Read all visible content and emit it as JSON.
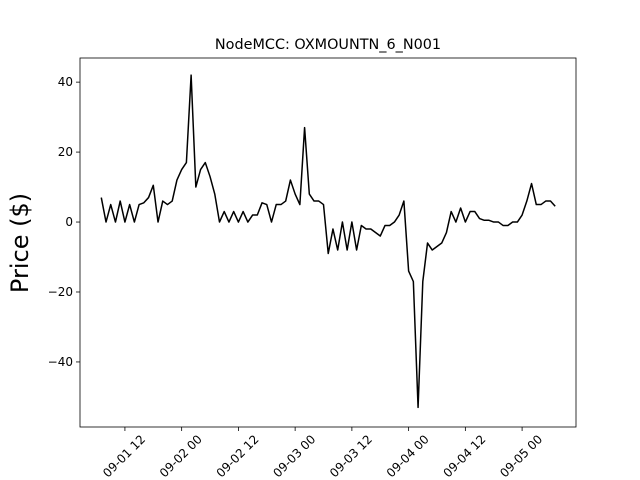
{
  "chart_data": {
    "type": "line",
    "title": "NodeMCC: OXMOUNTN_6_N001",
    "y_label": "Price ($)",
    "x": [
      "09-01 07:00",
      "09-01 08:00",
      "09-01 09:00",
      "09-01 10:00",
      "09-01 11:00",
      "09-01 12:00",
      "09-01 13:00",
      "09-01 14:00",
      "09-01 15:00",
      "09-01 16:00",
      "09-01 17:00",
      "09-01 18:00",
      "09-01 19:00",
      "09-01 20:00",
      "09-01 21:00",
      "09-01 22:00",
      "09-01 23:00",
      "09-02 00:00",
      "09-02 01:00",
      "09-02 02:00",
      "09-02 03:00",
      "09-02 04:00",
      "09-02 05:00",
      "09-02 06:00",
      "09-02 07:00",
      "09-02 08:00",
      "09-02 09:00",
      "09-02 10:00",
      "09-02 11:00",
      "09-02 12:00",
      "09-02 13:00",
      "09-02 14:00",
      "09-02 15:00",
      "09-02 16:00",
      "09-02 17:00",
      "09-02 18:00",
      "09-02 19:00",
      "09-02 20:00",
      "09-02 21:00",
      "09-02 22:00",
      "09-02 23:00",
      "09-03 00:00",
      "09-03 01:00",
      "09-03 02:00",
      "09-03 03:00",
      "09-03 04:00",
      "09-03 05:00",
      "09-03 06:00",
      "09-03 07:00",
      "09-03 08:00",
      "09-03 09:00",
      "09-03 10:00",
      "09-03 11:00",
      "09-03 12:00",
      "09-03 13:00",
      "09-03 14:00",
      "09-03 15:00",
      "09-03 16:00",
      "09-03 17:00",
      "09-03 18:00",
      "09-03 19:00",
      "09-03 20:00",
      "09-03 21:00",
      "09-03 22:00",
      "09-03 23:00",
      "09-04 00:00",
      "09-04 01:00",
      "09-04 02:00",
      "09-04 03:00",
      "09-04 04:00",
      "09-04 05:00",
      "09-04 06:00",
      "09-04 07:00",
      "09-04 08:00",
      "09-04 09:00",
      "09-04 10:00",
      "09-04 11:00",
      "09-04 12:00",
      "09-04 13:00",
      "09-04 14:00",
      "09-04 15:00",
      "09-04 16:00",
      "09-04 17:00",
      "09-04 18:00",
      "09-04 19:00",
      "09-04 20:00",
      "09-04 21:00",
      "09-04 22:00",
      "09-04 23:00",
      "09-05 00:00",
      "09-05 01:00",
      "09-05 02:00",
      "09-05 03:00",
      "09-05 04:00",
      "09-05 05:00",
      "09-05 06:00",
      "09-05 07:00"
    ],
    "series": [
      {
        "color": "#000000",
        "values": [
          7,
          0,
          5,
          0,
          6,
          0,
          5,
          0,
          5,
          5.5,
          7,
          10.5,
          0,
          6,
          5,
          6,
          12,
          15,
          17,
          42,
          10,
          15,
          17,
          13,
          8,
          0,
          3,
          0,
          3,
          0,
          3,
          0,
          2,
          2,
          5.5,
          5,
          0,
          5,
          5,
          6,
          12,
          8,
          5,
          27,
          8,
          6,
          6,
          5,
          -9,
          -2,
          -8,
          0,
          -8,
          0,
          -8,
          -1,
          -2,
          -2,
          -3,
          -4,
          -1,
          -1,
          0,
          2,
          6,
          -14,
          -17,
          -53,
          -17,
          -6,
          -8,
          -7,
          -6,
          -3,
          3,
          0,
          4,
          0,
          3,
          3,
          1,
          0.5,
          0.5,
          0,
          0,
          -1,
          -1,
          0,
          0,
          2,
          6,
          11,
          5,
          5,
          6,
          6,
          4.5
        ]
      }
    ],
    "xlim": [
      "09-01 02:30",
      "09-05 11:24"
    ],
    "xticks": [
      {
        "value": "09-01 12:00",
        "label": "09-01 12"
      },
      {
        "value": "09-02 00:00",
        "label": "09-02 00"
      },
      {
        "value": "09-02 12:00",
        "label": "09-02 12"
      },
      {
        "value": "09-03 00:00",
        "label": "09-03 00"
      },
      {
        "value": "09-03 12:00",
        "label": "09-03 12"
      },
      {
        "value": "09-04 00:00",
        "label": "09-04 00"
      },
      {
        "value": "09-04 12:00",
        "label": "09-04 12"
      },
      {
        "value": "09-05 00:00",
        "label": "09-05 00"
      }
    ],
    "ylim": [
      -58.6,
      46.9
    ],
    "yticks": [
      {
        "value": -40,
        "label": "−40"
      },
      {
        "value": -20,
        "label": "−20"
      },
      0,
      20,
      40
    ]
  }
}
